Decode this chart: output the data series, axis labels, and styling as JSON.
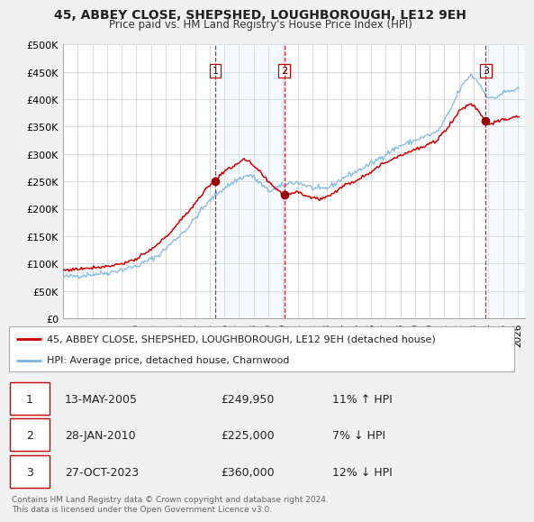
{
  "title": "45, ABBEY CLOSE, SHEPSHED, LOUGHBOROUGH, LE12 9EH",
  "subtitle": "Price paid vs. HM Land Registry's House Price Index (HPI)",
  "ylabel_ticks": [
    "£0",
    "£50K",
    "£100K",
    "£150K",
    "£200K",
    "£250K",
    "£300K",
    "£350K",
    "£400K",
    "£450K",
    "£500K"
  ],
  "ytick_values": [
    0,
    50000,
    100000,
    150000,
    200000,
    250000,
    300000,
    350000,
    400000,
    450000,
    500000
  ],
  "ylim": [
    0,
    500000
  ],
  "xlim_start": 1995.0,
  "xlim_end": 2026.5,
  "xtick_years": [
    1995,
    1996,
    1997,
    1998,
    1999,
    2000,
    2001,
    2002,
    2003,
    2004,
    2005,
    2006,
    2007,
    2008,
    2009,
    2010,
    2011,
    2012,
    2013,
    2014,
    2015,
    2016,
    2017,
    2018,
    2019,
    2020,
    2021,
    2022,
    2023,
    2024,
    2025,
    2026
  ],
  "hpi_line_color": "#7eb4e0",
  "sale_line_color": "#cc0000",
  "sale_dot_color": "#990000",
  "vline_color": "#cc0000",
  "shade_color": "#ddeeff",
  "legend_sale": "45, ABBEY CLOSE, SHEPSHED, LOUGHBOROUGH, LE12 9EH (detached house)",
  "legend_hpi": "HPI: Average price, detached house, Charnwood",
  "transactions": [
    {
      "num": 1,
      "date": "13-MAY-2005",
      "price": 249950,
      "price_str": "£249,950",
      "hpi_diff": "11% ↑ HPI",
      "year": 2005.37
    },
    {
      "num": 2,
      "date": "28-JAN-2010",
      "price": 225000,
      "price_str": "£225,000",
      "hpi_diff": "7% ↓ HPI",
      "year": 2010.08
    },
    {
      "num": 3,
      "date": "27-OCT-2023",
      "price": 360000,
      "price_str": "£360,000",
      "hpi_diff": "12% ↓ HPI",
      "year": 2023.82
    }
  ],
  "footer": "Contains HM Land Registry data © Crown copyright and database right 2024.\nThis data is licensed under the Open Government Licence v3.0.",
  "background_color": "#f0f0f0",
  "plot_bg_color": "#ffffff",
  "grid_color": "#cccccc",
  "shade1_start": 2005.37,
  "shade1_end": 2010.08,
  "shade2_start": 2023.82,
  "shade2_end": 2026.5
}
